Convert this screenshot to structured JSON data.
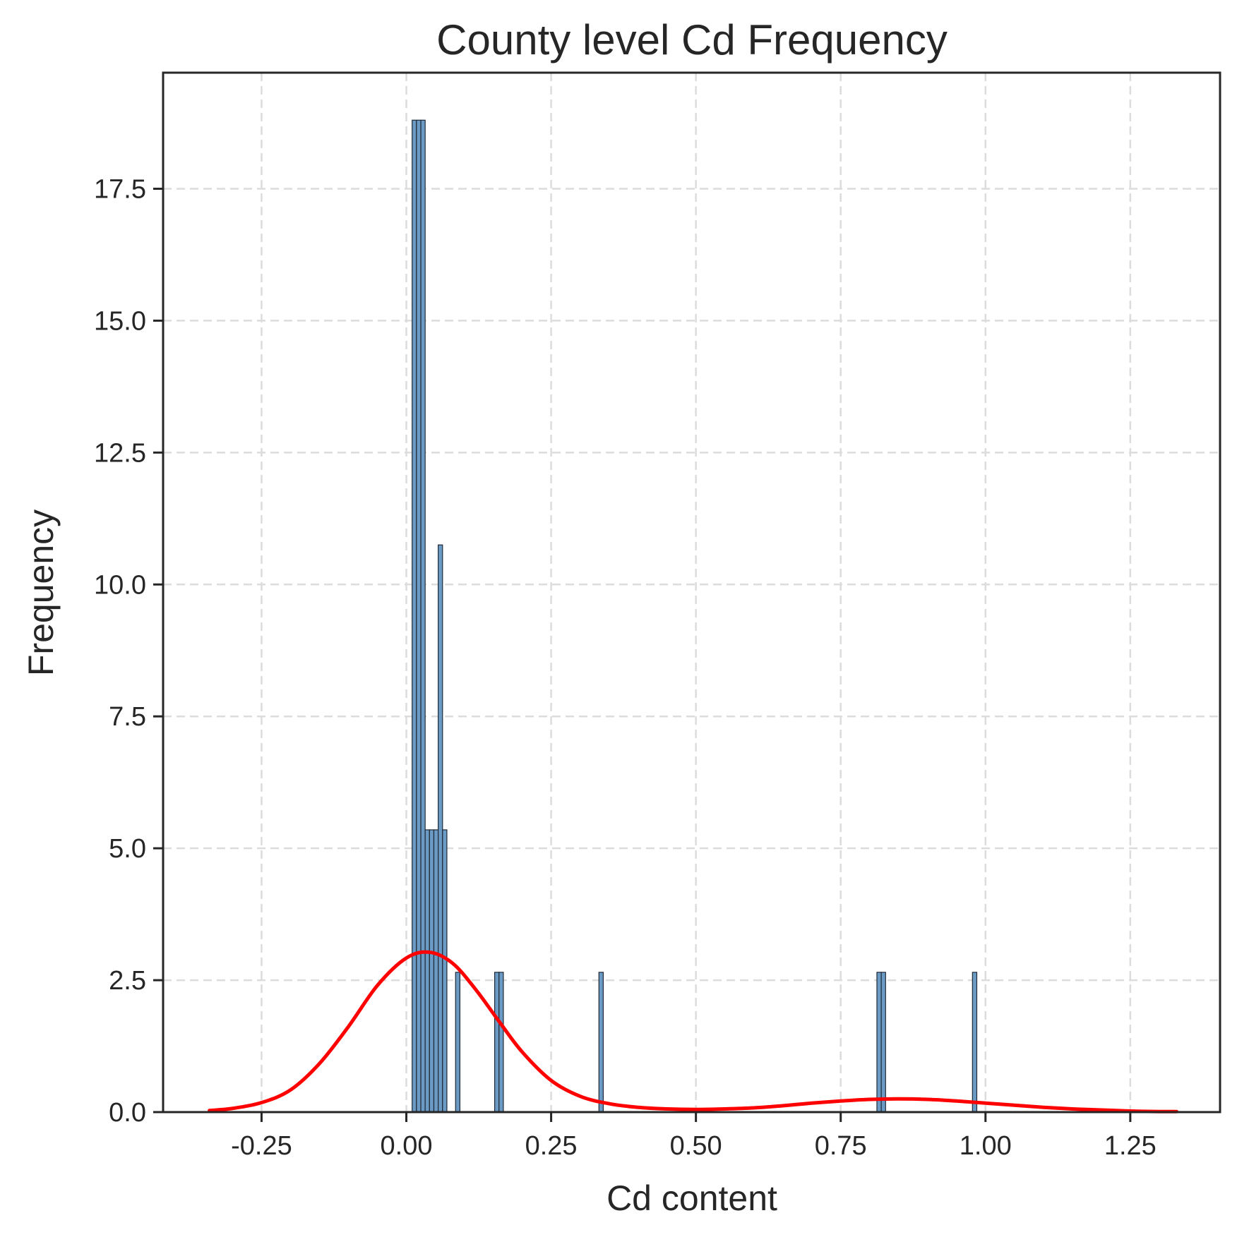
{
  "chart_data": {
    "type": "bar",
    "title": "County level Cd Frequency",
    "xlabel": "Cd content",
    "ylabel": "Frequency",
    "xlim": [
      -0.42,
      1.405
    ],
    "ylim": [
      0,
      19.7
    ],
    "xticks": [
      -0.25,
      0.0,
      0.25,
      0.5,
      0.75,
      1.0,
      1.25
    ],
    "xtick_labels": [
      "-0.25",
      "0.00",
      "0.25",
      "0.50",
      "0.75",
      "1.00",
      "1.25"
    ],
    "yticks": [
      0.0,
      2.5,
      5.0,
      7.5,
      10.0,
      12.5,
      15.0,
      17.5
    ],
    "ytick_labels": [
      "0.0",
      "2.5",
      "5.0",
      "7.5",
      "10.0",
      "12.5",
      "15.0",
      "17.5"
    ],
    "grid": true,
    "bin_width": 0.0075,
    "bars": [
      {
        "x": 0.01,
        "value": 18.8
      },
      {
        "x": 0.0175,
        "value": 18.8
      },
      {
        "x": 0.025,
        "value": 18.8
      },
      {
        "x": 0.0325,
        "value": 5.35
      },
      {
        "x": 0.04,
        "value": 5.35
      },
      {
        "x": 0.0475,
        "value": 5.35
      },
      {
        "x": 0.055,
        "value": 10.75
      },
      {
        "x": 0.0625,
        "value": 5.35
      },
      {
        "x": 0.085,
        "value": 2.65
      },
      {
        "x": 0.1525,
        "value": 2.65
      },
      {
        "x": 0.16,
        "value": 2.65
      },
      {
        "x": 0.3325,
        "value": 2.65
      },
      {
        "x": 0.8125,
        "value": 2.65
      },
      {
        "x": 0.82,
        "value": 2.65
      },
      {
        "x": 0.9775,
        "value": 2.65
      }
    ],
    "series": [
      {
        "type": "line",
        "x": [
          -0.34,
          -0.3,
          -0.25,
          -0.2,
          -0.15,
          -0.1,
          -0.05,
          0.0,
          0.04,
          0.08,
          0.12,
          0.16,
          0.2,
          0.25,
          0.3,
          0.35,
          0.4,
          0.45,
          0.5,
          0.55,
          0.6,
          0.65,
          0.7,
          0.75,
          0.8,
          0.85,
          0.9,
          0.95,
          1.0,
          1.05,
          1.1,
          1.15,
          1.2,
          1.25,
          1.3,
          1.33
        ],
        "y": [
          0.03,
          0.07,
          0.18,
          0.42,
          0.92,
          1.62,
          2.4,
          2.92,
          3.03,
          2.82,
          2.32,
          1.72,
          1.14,
          0.6,
          0.3,
          0.16,
          0.09,
          0.06,
          0.05,
          0.06,
          0.08,
          0.12,
          0.17,
          0.21,
          0.24,
          0.25,
          0.24,
          0.21,
          0.17,
          0.13,
          0.09,
          0.06,
          0.04,
          0.02,
          0.01,
          0.01
        ],
        "color": "#ff0000"
      }
    ],
    "bar_color": "#6b9ac4"
  }
}
